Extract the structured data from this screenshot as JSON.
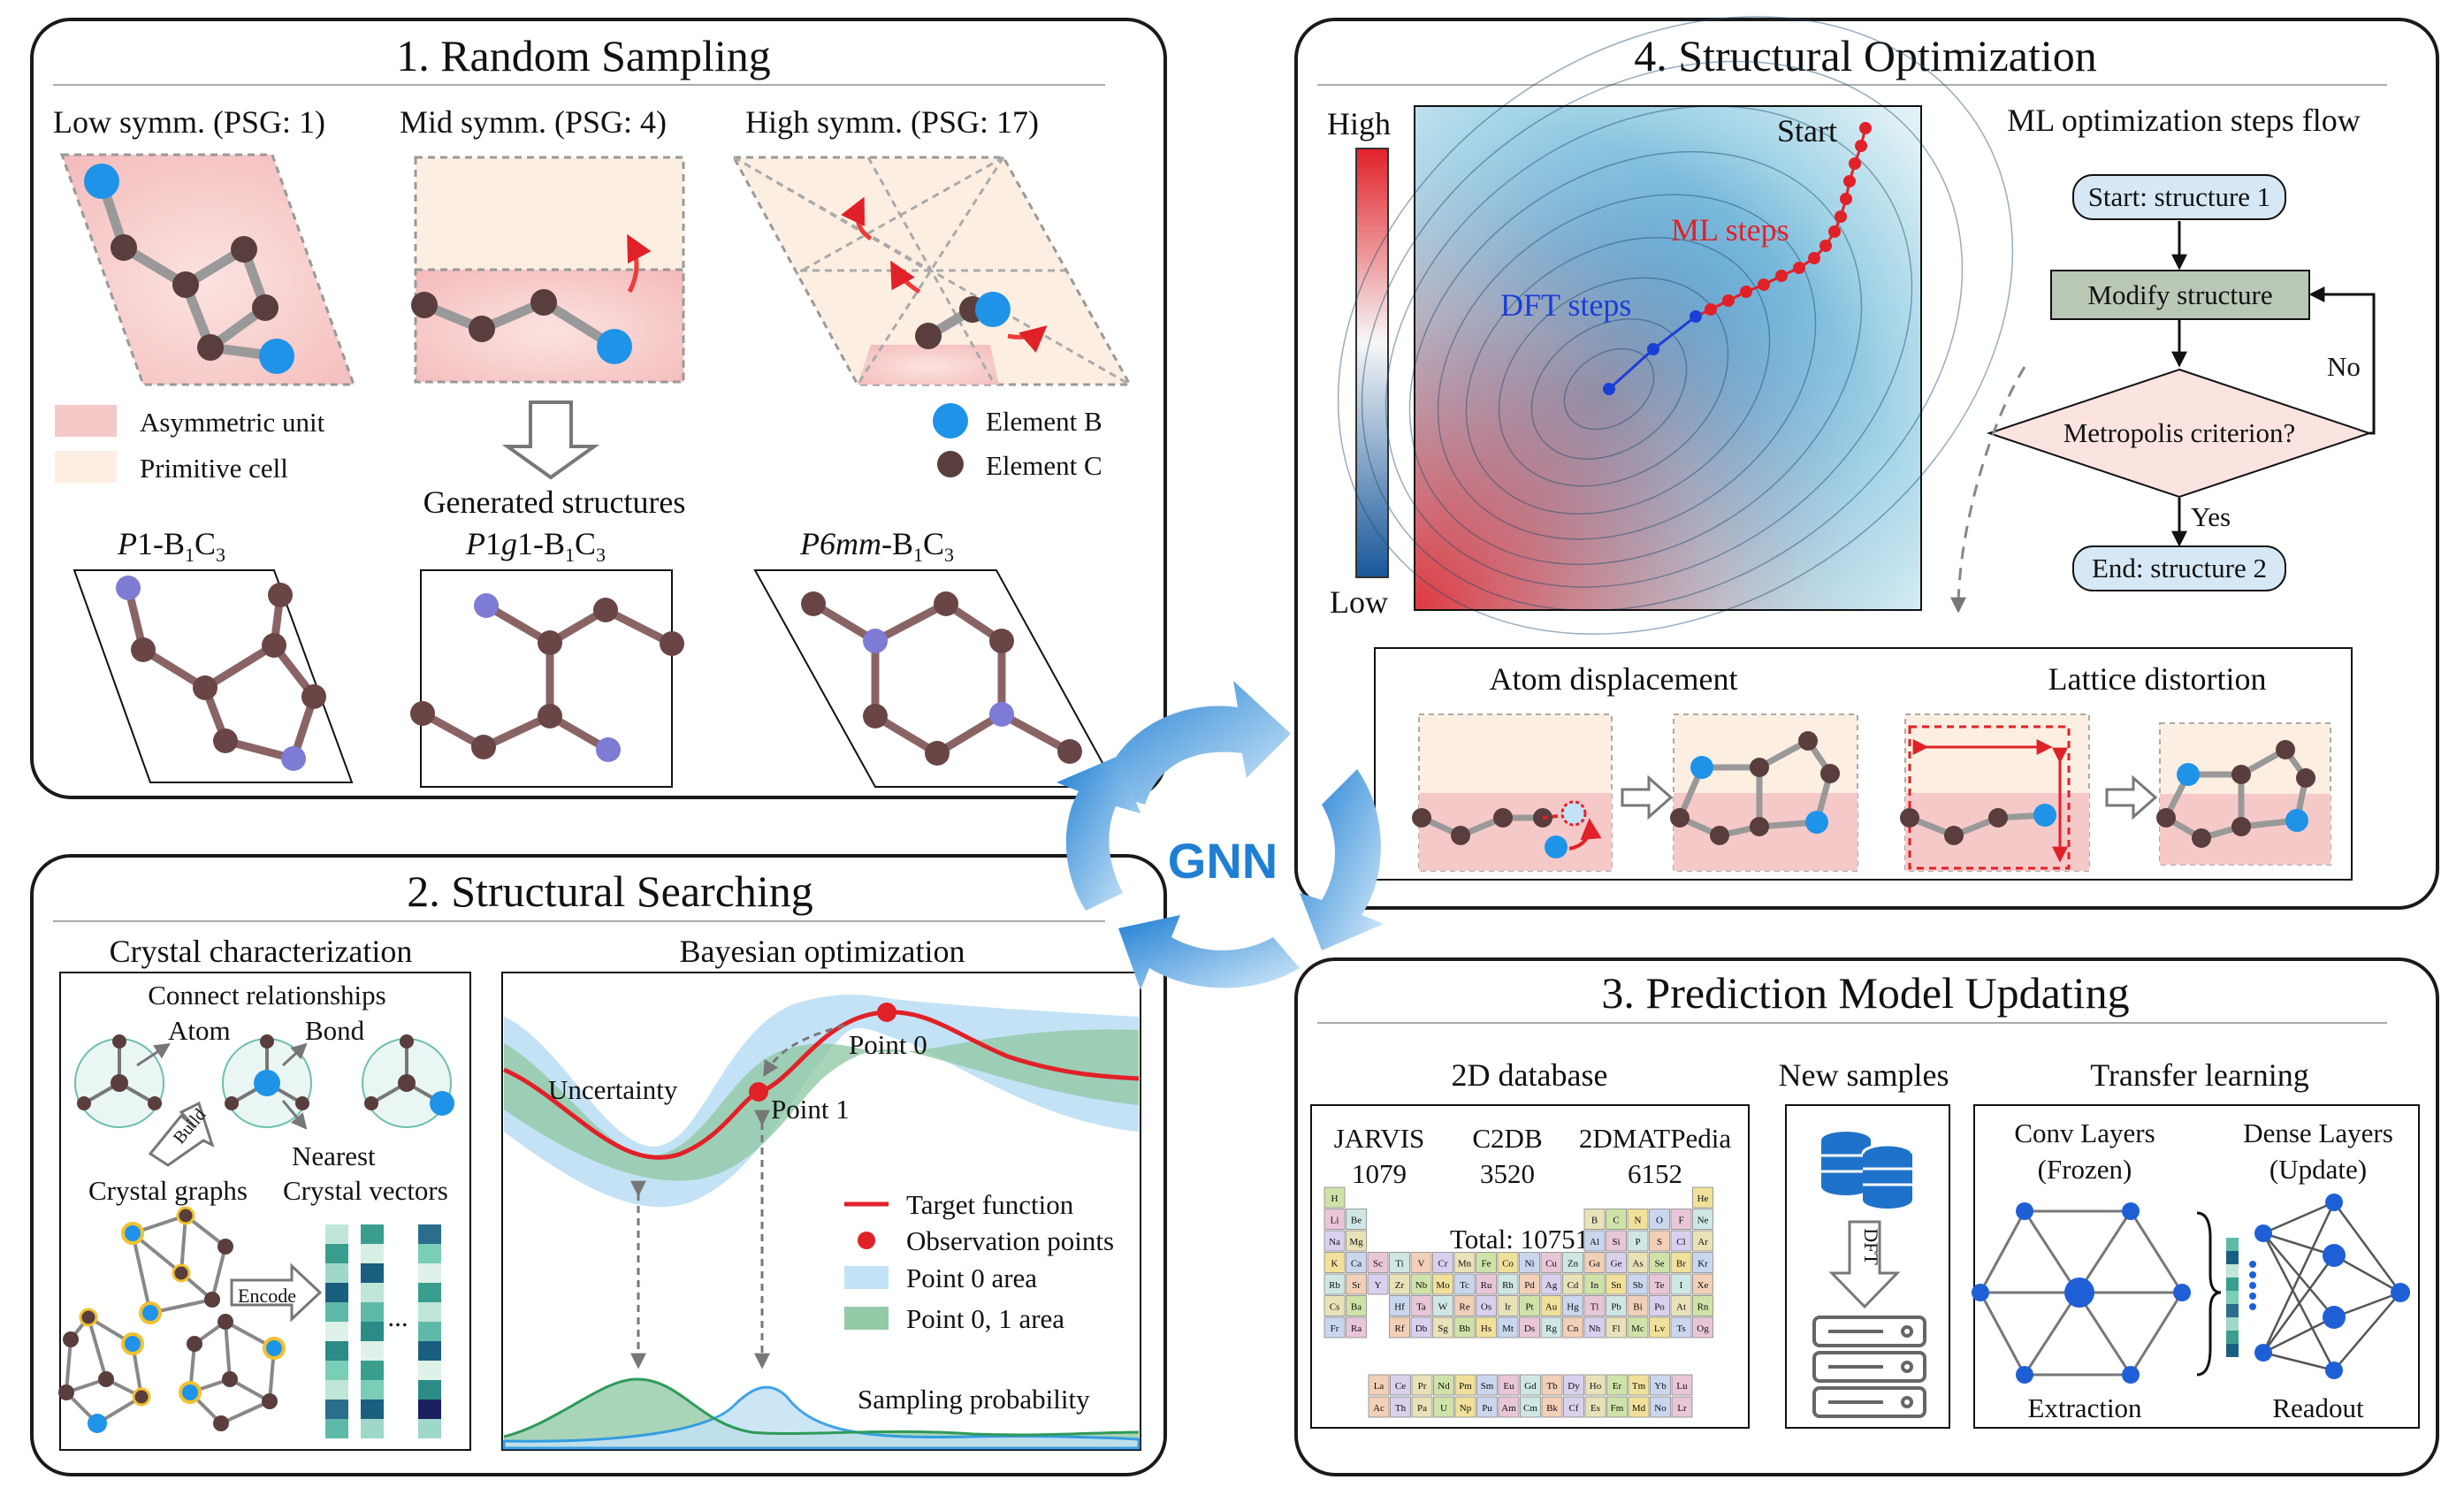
{
  "colors": {
    "element_b": "#1f93e8",
    "element_c": "#5a3d3d",
    "asymmetric_unit": "#f6c9c9",
    "primitive_cell": "#fcefe2",
    "ml_steps": "#e8202a",
    "dft_steps": "#1a3fd6",
    "point0_area": "#c4e2f5",
    "point01_area": "#92c9a6",
    "flow_box": "#d6e8f5",
    "modify_box": "#b9c8b4"
  },
  "panel1": {
    "title": "1. Random Sampling",
    "low": "Low symm. (PSG: 1)",
    "mid": "Mid symm. (PSG: 4)",
    "high": "High symm. (PSG: 17)",
    "legend_asym": "Asymmetric unit",
    "legend_prim": "Primitive cell",
    "legend_b": "Element B",
    "legend_c": "Element C",
    "generated": "Generated structures",
    "s1": {
      "a": "P",
      "b": "1-B",
      "c": "1",
      "d": "C",
      "e": "3"
    },
    "s2": {
      "a": "P",
      "b": "1",
      "c": "g",
      "d": "1-B",
      "e": "1",
      "f": "C",
      "g": "3"
    },
    "s3": {
      "a": "P6mm",
      "b": "-B",
      "c": "1",
      "d": "C",
      "e": "3"
    }
  },
  "panel2": {
    "title": "2. Structural Searching",
    "crystal_title": "Crystal characterization",
    "connect": "Connect relationships",
    "atom": "Atom",
    "bond": "Bond",
    "build": "Build",
    "nearest": "Nearest",
    "crystal_graphs": "Crystal graphs",
    "crystal_vectors": "Crystal vectors",
    "encode": "Encode",
    "ellipsis": "...",
    "bayes_title": "Bayesian optimization",
    "uncertainty": "Uncertainty",
    "point0": "Point 0",
    "point1": "Point 1",
    "legend_target": "Target function",
    "legend_obs": "Observation points",
    "legend_p0": "Point 0 area",
    "legend_p01": "Point 0, 1 area",
    "sampling": "Sampling probability"
  },
  "center": {
    "gnn": "GNN"
  },
  "panel3": {
    "title": "3. Prediction Model Updating",
    "db_title": "2D database",
    "jarvis": "JARVIS",
    "jarvis_n": "1079",
    "c2db": "C2DB",
    "c2db_n": "3520",
    "dmat": "2DMATPedia",
    "dmat_n": "6152",
    "total": "Total: 10751",
    "new_title": "New samples",
    "dft": "DFT",
    "tl_title": "Transfer learning",
    "conv": "Conv Layers",
    "frozen": "(Frozen)",
    "dense": "Dense Layers",
    "update": "(Update)",
    "extraction": "Extraction",
    "readout": "Readout",
    "pt_row1": [
      "H",
      "",
      "",
      "",
      "",
      "",
      "",
      "",
      "",
      "",
      "",
      "",
      "",
      "",
      "",
      "",
      "",
      "He"
    ],
    "pt_row2": [
      "Li",
      "Be",
      "",
      "",
      "",
      "",
      "",
      "",
      "",
      "",
      "",
      "",
      "B",
      "C",
      "N",
      "O",
      "F",
      "Ne"
    ],
    "pt_row3": [
      "Na",
      "Mg",
      "",
      "",
      "",
      "",
      "",
      "",
      "",
      "",
      "",
      "",
      "Al",
      "Si",
      "P",
      "S",
      "Cl",
      "Ar"
    ],
    "pt_row4": [
      "K",
      "Ca",
      "Sc",
      "Ti",
      "V",
      "Cr",
      "Mn",
      "Fe",
      "Co",
      "Ni",
      "Cu",
      "Zn",
      "Ga",
      "Ge",
      "As",
      "Se",
      "Br",
      "Kr"
    ],
    "pt_row5": [
      "Rb",
      "Sr",
      "Y",
      "Zr",
      "Nb",
      "Mo",
      "Tc",
      "Ru",
      "Rh",
      "Pd",
      "Ag",
      "Cd",
      "In",
      "Sn",
      "Sb",
      "Te",
      "I",
      "Xe"
    ],
    "pt_row6": [
      "Cs",
      "Ba",
      "",
      "Hf",
      "Ta",
      "W",
      "Re",
      "Os",
      "Ir",
      "Pt",
      "Au",
      "Hg",
      "Tl",
      "Pb",
      "Bi",
      "Po",
      "At",
      "Rn"
    ],
    "pt_row7": [
      "Fr",
      "Ra",
      "",
      "Rf",
      "Db",
      "Sg",
      "Bh",
      "Hs",
      "Mt",
      "Ds",
      "Rg",
      "Cn",
      "Nh",
      "Fl",
      "Mc",
      "Lv",
      "Ts",
      "Og"
    ],
    "pt_lan": [
      "La",
      "Ce",
      "Pr",
      "Nd",
      "Pm",
      "Sm",
      "Eu",
      "Gd",
      "Tb",
      "Dy",
      "Ho",
      "Er",
      "Tm",
      "Yb",
      "Lu"
    ],
    "pt_act": [
      "Ac",
      "Th",
      "Pa",
      "U",
      "Np",
      "Pu",
      "Am",
      "Cm",
      "Bk",
      "Cf",
      "Es",
      "Fm",
      "Md",
      "No",
      "Lr"
    ]
  },
  "panel4": {
    "title": "4. Structural Optimization",
    "high": "High",
    "low": "Low",
    "start": "Start",
    "ml_steps": "ML steps",
    "dft_steps": "DFT steps",
    "flow_title": "ML optimization steps flow",
    "start_box": "Start: structure 1",
    "modify_box": "Modify structure",
    "metropolis": "Metropolis criterion?",
    "no": "No",
    "yes": "Yes",
    "end_box": "End: structure 2",
    "atom_disp": "Atom displacement",
    "lattice": "Lattice distortion"
  }
}
